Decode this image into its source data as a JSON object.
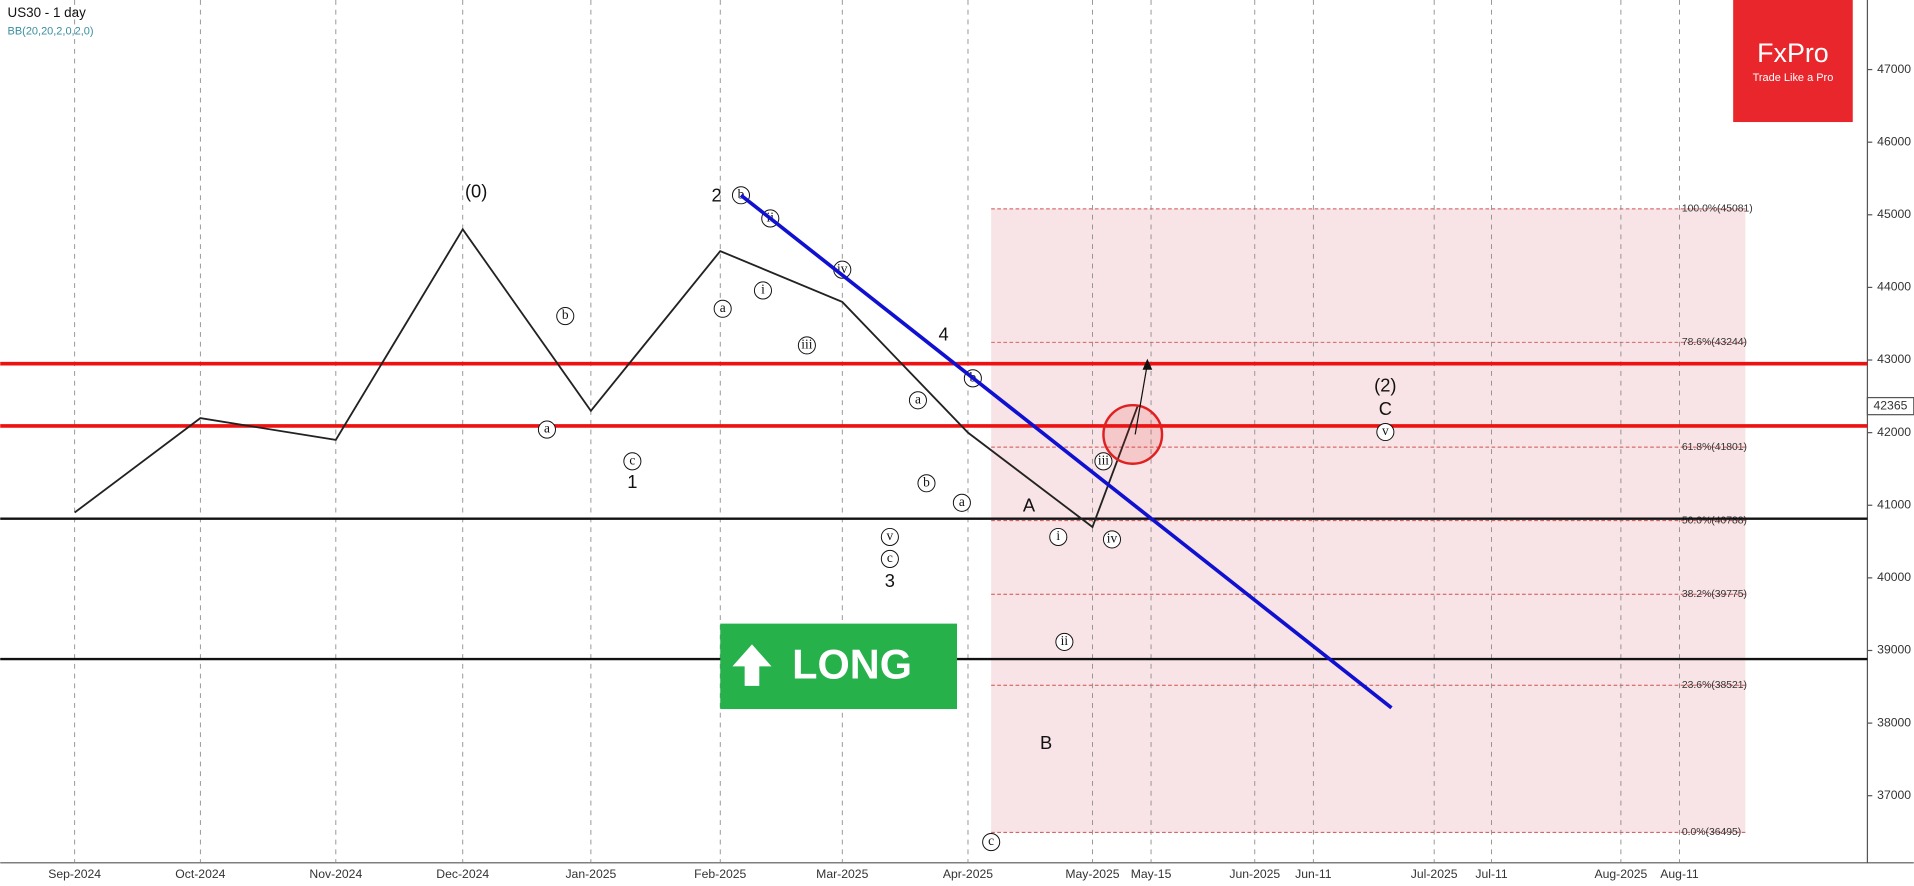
{
  "chart_data": {
    "type": "line",
    "title": "US30 - 1 day",
    "subtitle": "BB(20,20,2,0,2,0)",
    "brand": {
      "name": "FxPro",
      "tagline": "Trade Like a Pro"
    },
    "signal": "LONG",
    "categories": [
      "Sep-2024",
      "Oct-2024",
      "Nov-2024",
      "Dec-2024",
      "Jan-2025",
      "Feb-2025",
      "Mar-2025",
      "Apr-2025",
      "May-2025",
      "May-15",
      "Jun-2025",
      "Jun-11",
      "Jul-2025",
      "Jul-11",
      "Aug-2025",
      "Aug-11"
    ],
    "series": [
      {
        "name": "US30",
        "color": "#222222",
        "values": [
          40900,
          42200,
          41900,
          44800,
          42300,
          44500,
          43800,
          42000,
          40700,
          42365,
          null,
          null,
          null,
          null,
          null,
          null
        ]
      }
    ],
    "last_price": 42365,
    "ylim": [
      36076,
      47958
    ],
    "yticks": [
      37000,
      38000,
      39000,
      40000,
      41000,
      42000,
      43000,
      44000,
      45000,
      46000,
      47000
    ],
    "resistance_levels": [
      42950,
      42092
    ],
    "support_levels": [
      40815,
      38882
    ],
    "fibonacci": [
      {
        "value": 45081,
        "label": "100.0%(45081)"
      },
      {
        "value": 43244,
        "label": "78.6%(43244)"
      },
      {
        "value": 41801,
        "label": "61.8%(41801)"
      },
      {
        "value": 40788,
        "label": "50.0%(40788)"
      },
      {
        "value": 39775,
        "label": "38.2%(39775)"
      },
      {
        "value": 38521,
        "label": "23.6%(38521)"
      },
      {
        "value": 36495,
        "label": "0.0%(36495)"
      }
    ],
    "wave_labels": [
      "(0)",
      "2",
      "4",
      "1",
      "3",
      "A",
      "B",
      "(2)",
      "C"
    ],
    "wave_circled": [
      "b",
      "a",
      "c",
      "b",
      "a",
      "i",
      "ii",
      "iii",
      "iv",
      "v",
      "c",
      "a",
      "b",
      "a",
      "b",
      "c",
      "i",
      "ii",
      "iii",
      "iv",
      "v"
    ]
  }
}
